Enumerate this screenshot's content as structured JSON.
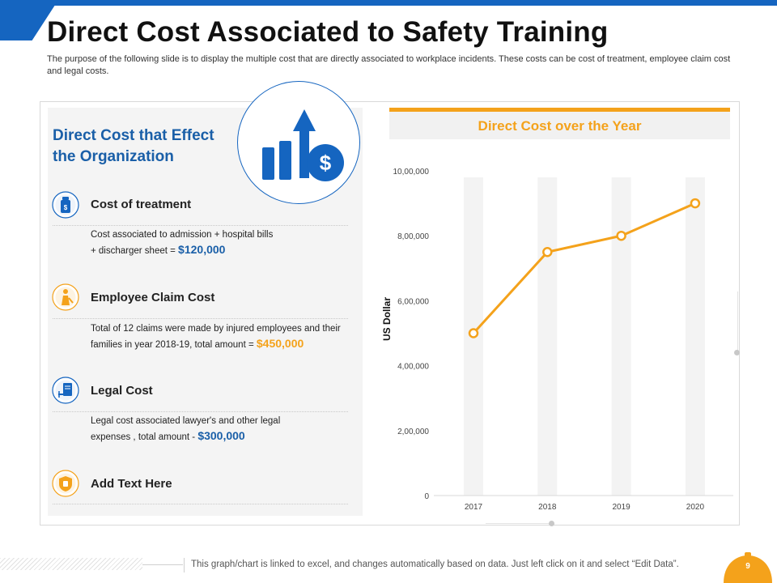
{
  "slide": {
    "title": "Direct Cost Associated to Safety Training",
    "subtitle": "The purpose of the following slide is to display the multiple cost that are directly associated to workplace incidents. These costs can be cost of treatment, employee claim cost and legal costs.",
    "page_number": "9",
    "footer_note": "This graph/chart is linked to excel, and changes automatically based on data. Just left click on it and select “Edit Data”."
  },
  "panel": {
    "heading": "Direct Cost that Effect the Organization",
    "items": [
      {
        "title": "Cost of treatment",
        "desc_line1": "Cost associated to admission + hospital bills",
        "desc_line2": "+ discharger sheet = ",
        "amount": "$120,000",
        "icon": "medicine-bottle-icon"
      },
      {
        "title": "Employee Claim Cost",
        "desc_line1": "Total of 12 claims were made by injured employees and their",
        "desc_line2": "families in year 2018-19, total amount = ",
        "amount": "$450,000",
        "icon": "injured-worker-icon"
      },
      {
        "title": "Legal Cost",
        "desc_line1": "Legal cost associated lawyer's and other legal",
        "desc_line2": "expenses , total amount - ",
        "amount": "$300,000",
        "icon": "legal-document-icon"
      },
      {
        "title": "Add Text Here",
        "icon": "shield-icon"
      }
    ]
  },
  "colors": {
    "brand_blue": "#1565c0",
    "heading_blue": "#1a5fa8",
    "accent_orange": "#f4a21b"
  },
  "chart_data": {
    "type": "line",
    "title": "Direct Cost over the Year",
    "xlabel": "",
    "ylabel": "US Dollar",
    "categories": [
      "2017",
      "2018",
      "2019",
      "2020"
    ],
    "series": [
      {
        "values": [
          500000,
          750000,
          800000,
          900000
        ],
        "color": "#f4a21b"
      }
    ],
    "ylim": [
      0,
      1000000
    ],
    "yticks": [
      {
        "value": 0,
        "label": "0"
      },
      {
        "value": 200000,
        "label": "2,00,000"
      },
      {
        "value": 400000,
        "label": "4,00,000"
      },
      {
        "value": 600000,
        "label": "6,00,000"
      },
      {
        "value": 800000,
        "label": "8,00,000"
      },
      {
        "value": 1000000,
        "label": "10,00,000"
      }
    ],
    "grid": false,
    "legend": "none"
  }
}
